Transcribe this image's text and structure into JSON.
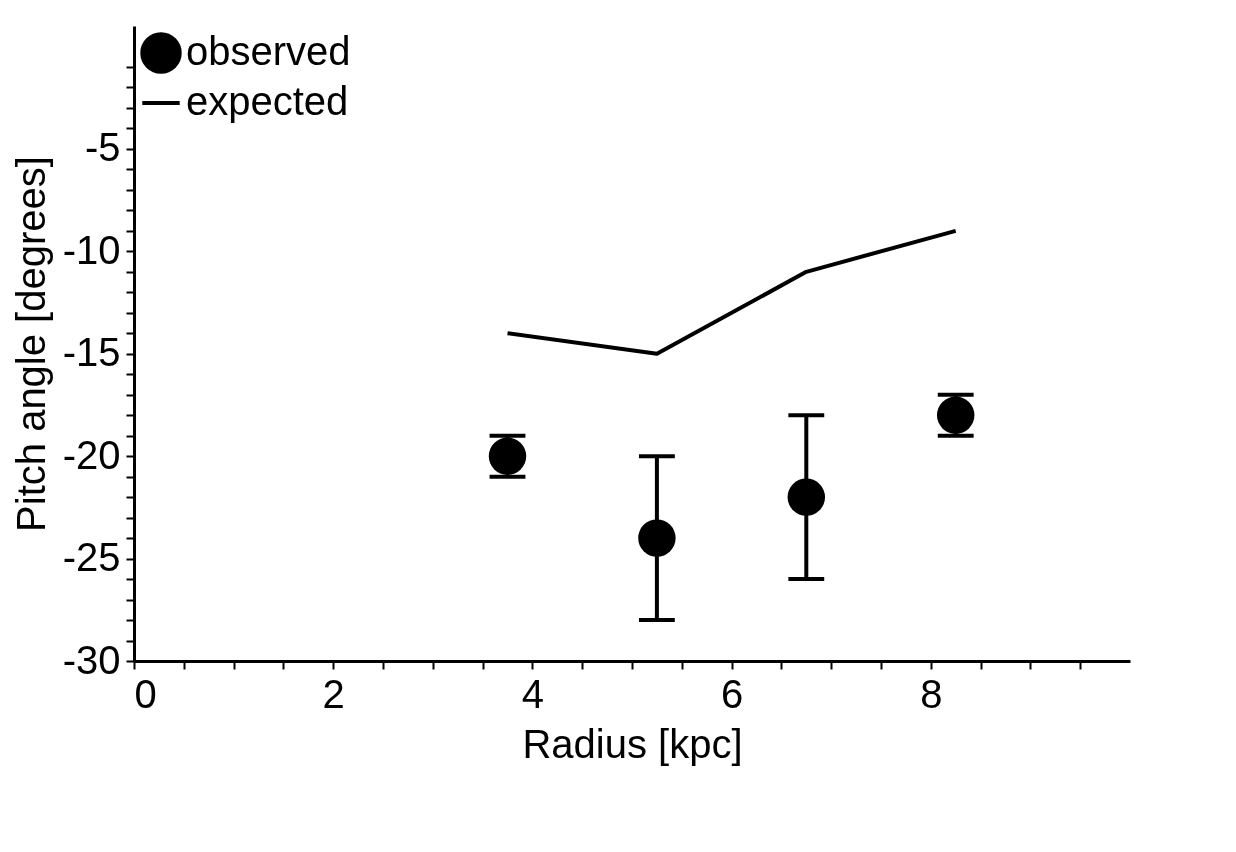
{
  "chart_data": {
    "type": "scatter",
    "xlabel": "Radius [kpc]",
    "ylabel": "Pitch angle [degrees]",
    "xlim": [
      0,
      10
    ],
    "xticks": [
      0,
      {
        "value": 0.5,
        "label": null
      },
      {
        "value": 1,
        "label": null
      },
      {
        "value": 1.5,
        "label": null
      },
      2,
      {
        "value": 2.5,
        "label": null
      },
      {
        "value": 3,
        "label": null
      },
      {
        "value": 3.5,
        "label": null
      },
      4,
      {
        "value": 4.5,
        "label": null
      },
      {
        "value": 5,
        "label": null
      },
      {
        "value": 5.5,
        "label": null
      },
      6,
      {
        "value": 6.5,
        "label": null
      },
      {
        "value": 7,
        "label": null
      },
      {
        "value": 7.5,
        "label": null
      },
      8,
      {
        "value": 8.5,
        "label": null
      },
      {
        "value": 9,
        "label": null
      },
      {
        "value": 9.5,
        "label": null
      }
    ],
    "ylim": [
      -30,
      1
    ],
    "yticks": [
      -30,
      {
        "value": -29,
        "label": null
      },
      {
        "value": -28,
        "label": null
      },
      {
        "value": -27,
        "label": null
      },
      {
        "value": -26,
        "label": null
      },
      -25,
      {
        "value": -24,
        "label": null
      },
      {
        "value": -23,
        "label": null
      },
      {
        "value": -22,
        "label": null
      },
      {
        "value": -21,
        "label": null
      },
      -20,
      {
        "value": -19,
        "label": null
      },
      {
        "value": -18,
        "label": null
      },
      {
        "value": -17,
        "label": null
      },
      {
        "value": -16,
        "label": null
      },
      -15,
      {
        "value": -14,
        "label": null
      },
      {
        "value": -13,
        "label": null
      },
      {
        "value": -12,
        "label": null
      },
      {
        "value": -11,
        "label": null
      },
      -10,
      {
        "value": -9,
        "label": null
      },
      {
        "value": -8,
        "label": null
      },
      {
        "value": -7,
        "label": null
      },
      {
        "value": -6,
        "label": null
      },
      -5,
      {
        "value": -4,
        "label": null
      },
      {
        "value": -3,
        "label": null
      },
      {
        "value": -2,
        "label": null
      },
      {
        "value": -1,
        "label": null
      }
    ],
    "x": [
      3.75,
      5.25,
      6.75,
      8.25
    ],
    "series": [
      {
        "name": "observed",
        "type": "scatter",
        "color": "#000000",
        "marker": "circle",
        "values": [
          -20,
          -24,
          -22,
          -18
        ],
        "errors": [
          1,
          4,
          4,
          1
        ]
      },
      {
        "name": "expected",
        "type": "line",
        "color": "#000000",
        "line_style": "solid",
        "values": [
          -14,
          -15,
          -11,
          -9
        ]
      }
    ],
    "legend": "top left",
    "grid": false
  }
}
